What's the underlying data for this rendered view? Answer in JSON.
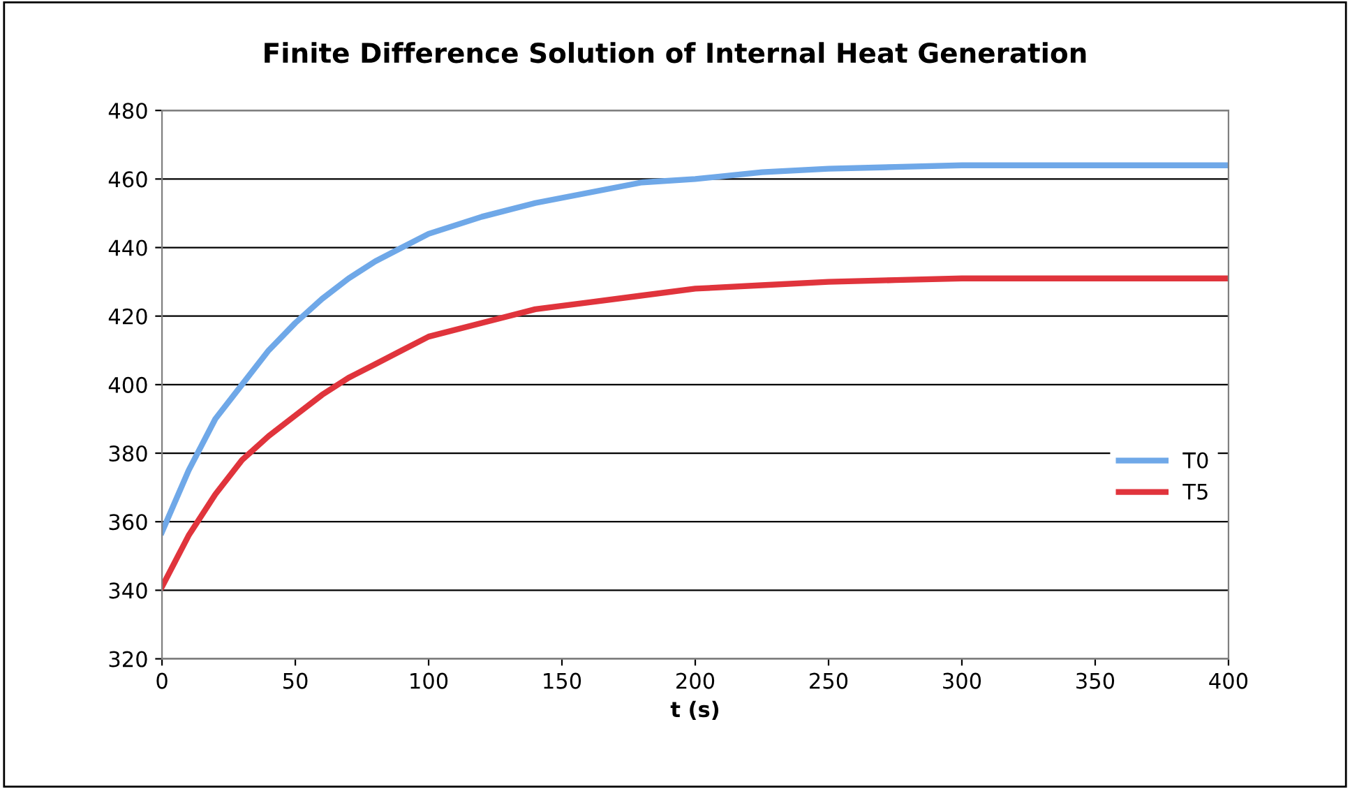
{
  "chart_data": {
    "type": "line",
    "title": "Finite Difference Solution of Internal Heat Generation",
    "xlabel": "t (s)",
    "xlim": [
      0,
      400
    ],
    "xticks": [
      0,
      50,
      100,
      150,
      200,
      250,
      300,
      350,
      400
    ],
    "ylim": [
      320,
      480
    ],
    "yticks": [
      320,
      340,
      360,
      380,
      400,
      420,
      440,
      460,
      480
    ],
    "grid": "y",
    "legend": "right",
    "marker": "none",
    "line_style": "solid",
    "series": [
      {
        "name": "T0",
        "color": "#6fa8e8",
        "x": [
          0,
          10,
          20,
          30,
          40,
          50,
          60,
          70,
          80,
          90,
          100,
          120,
          140,
          160,
          180,
          200,
          225,
          250,
          275,
          300,
          350,
          400
        ],
        "values": [
          357,
          375,
          390,
          400,
          410,
          418,
          425,
          431,
          436,
          440,
          444,
          449,
          453,
          456,
          459,
          460,
          462,
          463,
          463.5,
          464,
          464,
          464
        ]
      },
      {
        "name": "T5",
        "color": "#e0343c",
        "x": [
          0,
          10,
          20,
          30,
          40,
          50,
          60,
          70,
          80,
          90,
          100,
          120,
          140,
          160,
          180,
          200,
          225,
          250,
          275,
          300,
          350,
          400
        ],
        "values": [
          341,
          356,
          368,
          378,
          385,
          391,
          397,
          402,
          406,
          410,
          414,
          418,
          422,
          424,
          426,
          428,
          429,
          430,
          430.5,
          431,
          431,
          431
        ]
      }
    ]
  }
}
